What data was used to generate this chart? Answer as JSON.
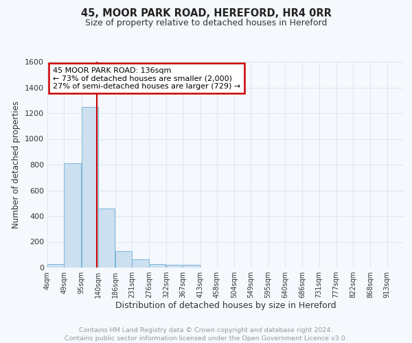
{
  "title_line1": "45, MOOR PARK ROAD, HEREFORD, HR4 0RR",
  "title_line2": "Size of property relative to detached houses in Hereford",
  "xlabel": "Distribution of detached houses by size in Hereford",
  "ylabel": "Number of detached properties",
  "bin_labels": [
    "4sqm",
    "49sqm",
    "95sqm",
    "140sqm",
    "186sqm",
    "231sqm",
    "276sqm",
    "322sqm",
    "367sqm",
    "413sqm",
    "458sqm",
    "504sqm",
    "549sqm",
    "595sqm",
    "640sqm",
    "686sqm",
    "731sqm",
    "777sqm",
    "822sqm",
    "868sqm",
    "913sqm"
  ],
  "bar_heights": [
    28,
    810,
    1248,
    458,
    130,
    65,
    28,
    22,
    20,
    0,
    0,
    0,
    0,
    0,
    0,
    0,
    0,
    0,
    0,
    0
  ],
  "bar_color": "#cde0f0",
  "bar_edge_color": "#6aaed6",
  "vline_x": 136,
  "vline_color": "#cc0000",
  "annotation_lines": [
    "45 MOOR PARK ROAD: 136sqm",
    "← 73% of detached houses are smaller (2,000)",
    "27% of semi-detached houses are larger (729) →"
  ],
  "annotation_box_color": "#cc0000",
  "ylim": [
    0,
    1600
  ],
  "yticks": [
    0,
    200,
    400,
    600,
    800,
    1000,
    1200,
    1400,
    1600
  ],
  "footer_line1": "Contains HM Land Registry data © Crown copyright and database right 2024.",
  "footer_line2": "Contains public sector information licensed under the Open Government Licence v3.0.",
  "bg_color": "#f5f8fc",
  "grid_color": "#dce6f0",
  "bin_starts": [
    4,
    49,
    95,
    140,
    186,
    231,
    276,
    322,
    367,
    413,
    458,
    504,
    549,
    595,
    640,
    686,
    731,
    777,
    822,
    868
  ],
  "all_ticks": [
    4,
    49,
    95,
    140,
    186,
    231,
    276,
    322,
    367,
    413,
    458,
    504,
    549,
    595,
    640,
    686,
    731,
    777,
    822,
    868,
    913
  ],
  "bin_width": 45,
  "xlim_min": 4,
  "xlim_max": 958
}
